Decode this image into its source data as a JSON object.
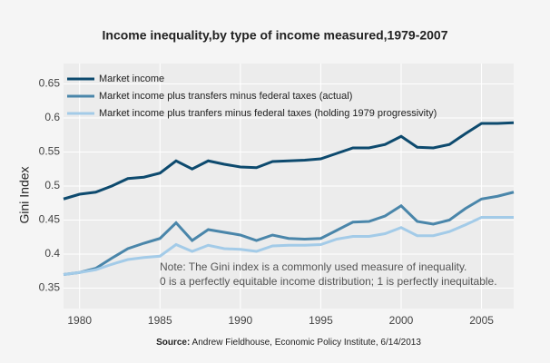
{
  "chart_data": {
    "type": "line",
    "title": "Income inequality,by type of income measured,1979-2007",
    "y_label": "Gini Index",
    "annotation": [
      "Note: The Gini index is a commonly used measure of inequality.",
      "0 is a perfectly equitable income distribution; 1 is perfectly inequitable."
    ],
    "source_label": "Source:",
    "source": "Andrew Fieldhouse, Economic Policy Institute, 6/14/2013",
    "x": [
      1979,
      1980,
      1981,
      1982,
      1983,
      1984,
      1985,
      1986,
      1987,
      1988,
      1989,
      1990,
      1991,
      1992,
      1993,
      1994,
      1995,
      1996,
      1997,
      1998,
      1999,
      2000,
      2001,
      2002,
      2003,
      2004,
      2005,
      2006,
      2007
    ],
    "series": [
      {
        "name": "Market income",
        "color": "#0d4a6e",
        "values": [
          0.481,
          0.488,
          0.491,
          0.5,
          0.511,
          0.513,
          0.519,
          0.537,
          0.525,
          0.537,
          0.532,
          0.528,
          0.527,
          0.536,
          0.537,
          0.538,
          0.54,
          0.548,
          0.556,
          0.556,
          0.561,
          0.573,
          0.557,
          0.556,
          0.561,
          0.577,
          0.592,
          0.592,
          0.593
        ]
      },
      {
        "name": "Market income plus transfers minus federal taxes (actual)",
        "color": "#4a86aa",
        "values": [
          0.37,
          0.373,
          0.379,
          0.394,
          0.408,
          0.416,
          0.423,
          0.446,
          0.42,
          0.436,
          0.432,
          0.428,
          0.42,
          0.428,
          0.423,
          0.422,
          0.423,
          0.435,
          0.447,
          0.448,
          0.456,
          0.471,
          0.448,
          0.444,
          0.45,
          0.467,
          0.481,
          0.485,
          0.491
        ]
      },
      {
        "name": "Market income plus tranfers minus federal taxes (holding 1979 progressivity)",
        "color": "#a3cbe8",
        "values": [
          0.37,
          0.373,
          0.377,
          0.385,
          0.392,
          0.395,
          0.397,
          0.414,
          0.404,
          0.413,
          0.408,
          0.407,
          0.404,
          0.412,
          0.413,
          0.413,
          0.414,
          0.422,
          0.426,
          0.426,
          0.43,
          0.439,
          0.427,
          0.427,
          0.433,
          0.443,
          0.454,
          0.454,
          0.454
        ]
      }
    ],
    "xlim": [
      1979,
      2007
    ],
    "xticks": [
      1980,
      1985,
      1990,
      1995,
      2000,
      2005
    ],
    "ylim": [
      0.32,
      0.68
    ],
    "yticks": [
      0.35,
      0.4,
      0.45,
      0.5,
      0.55,
      0.6,
      0.65
    ],
    "grid": true,
    "legend": "top-left"
  }
}
